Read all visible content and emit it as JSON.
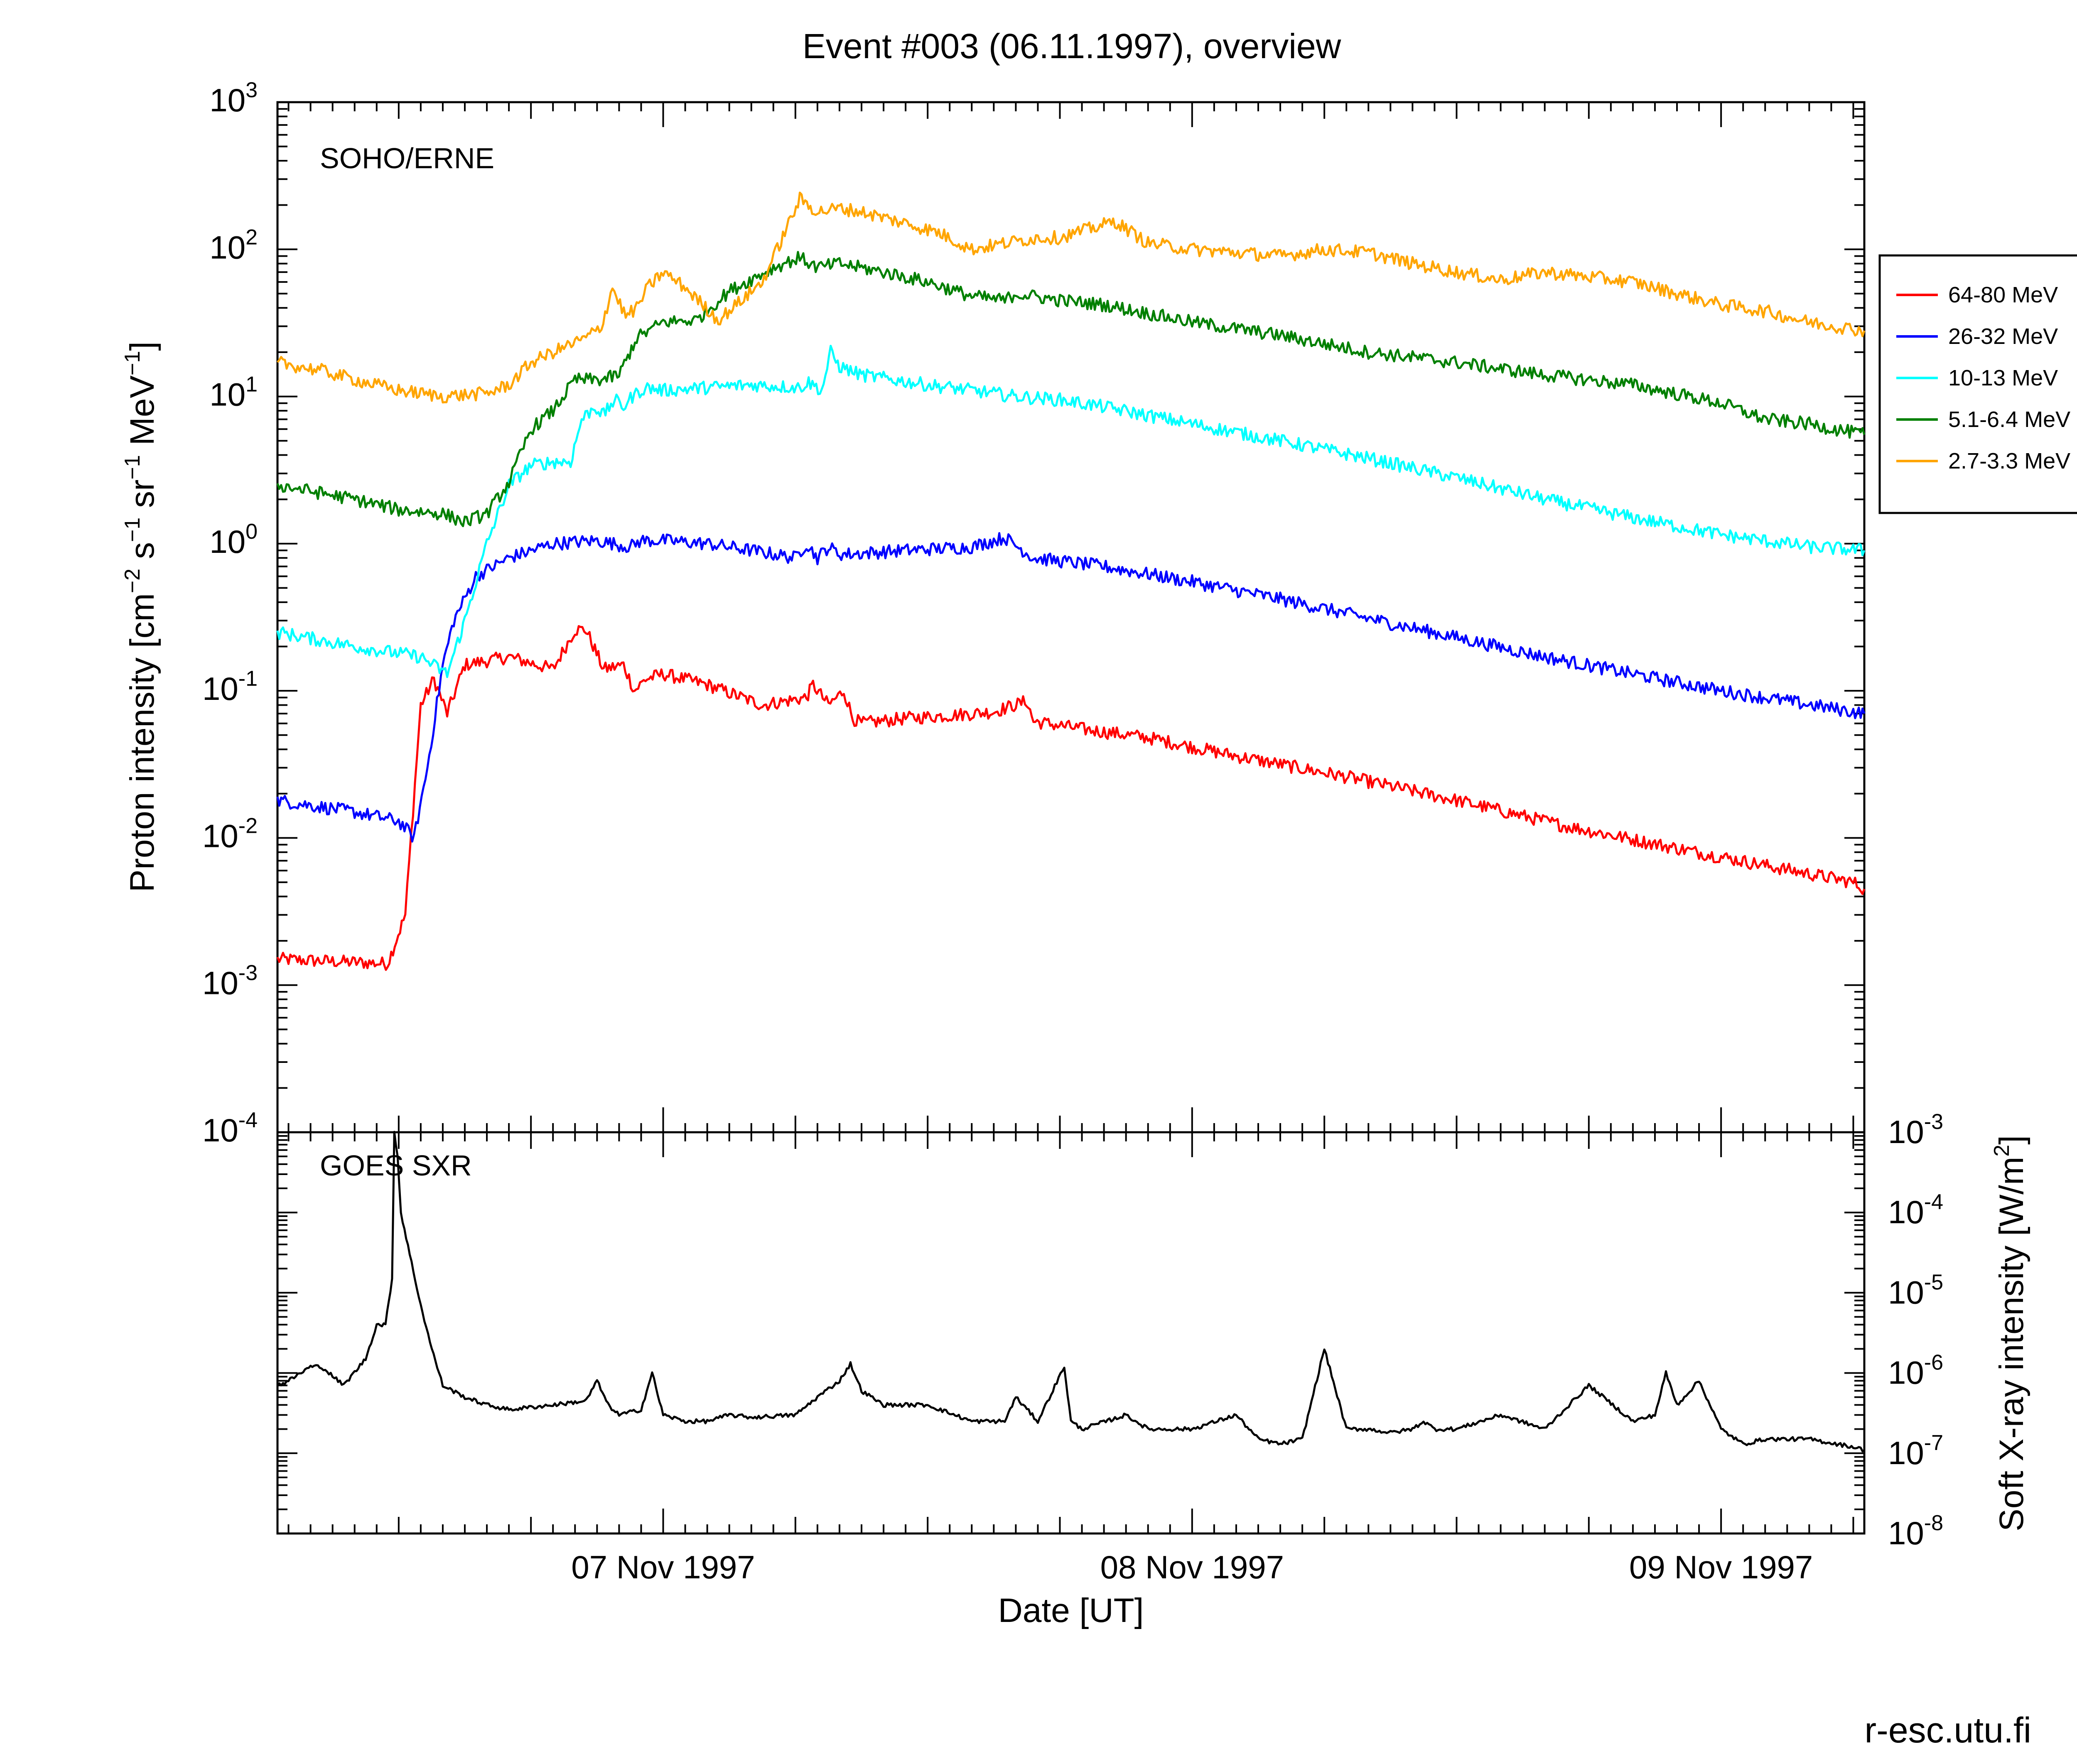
{
  "title": "Event #003 (06.11.1997), overview",
  "credit": "r-esc.utu.fi",
  "chart_data": [
    {
      "type": "line",
      "panel": "SOHO/ERNE",
      "ylabel": "Proton intensity [cm^-2 s^-1 sr^-1 MeV^-1]",
      "ylabel_parts": [
        "Proton intensity [cm",
        "−2",
        " s",
        "−1",
        " sr",
        "−1",
        " MeV",
        "−1",
        "]"
      ],
      "yscale": "log",
      "ylim": [
        0.0001,
        1000
      ],
      "ytick_labels": [
        {
          "base": "10",
          "exp": "-4",
          "value": 0.0001
        },
        {
          "base": "10",
          "exp": "-3",
          "value": 0.001
        },
        {
          "base": "10",
          "exp": "-2",
          "value": 0.01
        },
        {
          "base": "10",
          "exp": "-1",
          "value": 0.1
        },
        {
          "base": "10",
          "exp": "0",
          "value": 1
        },
        {
          "base": "10",
          "exp": "1",
          "value": 10
        },
        {
          "base": "10",
          "exp": "2",
          "value": 100
        },
        {
          "base": "10",
          "exp": "3",
          "value": 1000
        }
      ],
      "x_units": "hours since 1997-11-06 00:00 UT",
      "xlim": [
        6.5,
        78.5
      ],
      "legend_position": "right",
      "series": [
        {
          "name": "64-80 MeV",
          "color": "#ff0000",
          "x": [
            6.5,
            11.5,
            12.3,
            13,
            13.6,
            14.2,
            15,
            17,
            19,
            20,
            20.5,
            21.3,
            22.2,
            22.7,
            23.2,
            24,
            26,
            28.5,
            30.5,
            30.8,
            31.5,
            32.2,
            32.6,
            33,
            35,
            37,
            39,
            40.5,
            40.8,
            43,
            46,
            50,
            55,
            60,
            65,
            70,
            74,
            78,
            78.5
          ],
          "y": [
            0.0015,
            0.0014,
            0.003,
            0.08,
            0.12,
            0.07,
            0.15,
            0.17,
            0.14,
            0.26,
            0.26,
            0.14,
            0.15,
            0.1,
            0.12,
            0.13,
            0.11,
            0.08,
            0.09,
            0.11,
            0.08,
            0.1,
            0.065,
            0.06,
            0.065,
            0.068,
            0.072,
            0.085,
            0.062,
            0.055,
            0.048,
            0.036,
            0.026,
            0.018,
            0.012,
            0.0085,
            0.0065,
            0.005,
            0.0045
          ]
        },
        {
          "name": "26-32 MeV",
          "color": "#0000ff",
          "x": [
            6.5,
            10,
            12,
            12.7,
            13.3,
            14,
            14.5,
            15.5,
            17,
            19,
            21,
            22.5,
            23,
            24,
            26,
            28,
            30,
            30.5,
            31,
            31.5,
            32,
            32.5,
            35,
            38,
            39,
            39.5,
            40.8,
            44,
            48,
            52,
            56,
            60,
            64,
            68,
            72,
            75,
            78.5
          ],
          "y": [
            0.018,
            0.015,
            0.013,
            0.01,
            0.03,
            0.15,
            0.3,
            0.6,
            0.8,
            1.0,
            1.05,
            0.95,
            1.05,
            1.05,
            1.0,
            0.9,
            0.8,
            1.0,
            0.8,
            0.95,
            0.85,
            0.85,
            0.9,
            0.95,
            1.05,
            1.1,
            0.8,
            0.7,
            0.55,
            0.42,
            0.31,
            0.23,
            0.17,
            0.13,
            0.1,
            0.085,
            0.07
          ]
        },
        {
          "name": "10-13 MeV",
          "color": "#00ffff",
          "x": [
            6.5,
            10,
            13,
            14.2,
            15,
            16,
            17,
            18,
            19,
            19.8,
            20.3,
            20.9,
            21.3,
            21.8,
            22.2,
            22.6,
            23.2,
            24,
            26,
            28,
            30.2,
            30.6,
            31.2,
            31.6,
            32,
            33,
            36,
            38,
            40,
            42,
            44,
            48,
            52,
            56,
            60,
            64,
            68,
            72,
            76,
            78.5
          ],
          "y": [
            0.25,
            0.2,
            0.17,
            0.13,
            0.3,
            1.0,
            2.5,
            3.4,
            3.6,
            3.6,
            7.0,
            8.5,
            7.5,
            9.5,
            8.5,
            10,
            11.5,
            11,
            11.5,
            12,
            11.5,
            12.5,
            11,
            20,
            16,
            14,
            12,
            11,
            10,
            9.5,
            8.5,
            6.5,
            5.0,
            3.8,
            2.8,
            2.0,
            1.5,
            1.15,
            0.95,
            0.9
          ]
        },
        {
          "name": "5.1-6.4 MeV",
          "color": "#008000",
          "x": [
            6.5,
            10,
            12,
            14,
            15,
            16,
            17,
            18,
            19,
            20,
            21.2,
            22,
            22.8,
            24,
            25.5,
            27,
            29,
            30.2,
            31,
            32,
            34,
            36,
            38,
            39.5,
            40,
            42,
            44,
            48,
            52,
            56,
            60,
            64,
            68,
            72,
            74,
            76,
            78.5
          ],
          "y": [
            2.5,
            2.0,
            1.7,
            1.6,
            1.4,
            1.6,
            2.6,
            6.0,
            8.0,
            13,
            13,
            14,
            25,
            32,
            33,
            52,
            75,
            88,
            75,
            80,
            70,
            60,
            48,
            45,
            50,
            45,
            42,
            32,
            26,
            20,
            17,
            14,
            12,
            9,
            7,
            6.5,
            5.5
          ]
        },
        {
          "name": "2.7-3.3 MeV",
          "color": "#ffa500",
          "x": [
            6.5,
            8.5,
            10,
            12,
            14,
            16,
            17,
            18,
            19,
            20.5,
            21.2,
            21.7,
            22.3,
            22.8,
            23.3,
            24,
            25,
            26.5,
            28.5,
            30.2,
            31,
            32,
            33,
            35,
            36.5,
            38,
            39.5,
            41,
            42,
            43.5,
            44.5,
            46,
            48,
            50,
            52,
            54,
            56,
            58,
            60,
            62,
            64,
            66,
            68,
            70,
            72,
            74,
            76,
            78.5
          ],
          "y": [
            17,
            15,
            13,
            11,
            10,
            10.5,
            12,
            17,
            20,
            25,
            30,
            55,
            35,
            40,
            55,
            70,
            55,
            33,
            60,
            220,
            180,
            190,
            180,
            150,
            130,
            100,
            110,
            120,
            120,
            140,
            155,
            110,
            100,
            95,
            90,
            100,
            95,
            80,
            70,
            62,
            70,
            65,
            60,
            50,
            42,
            38,
            32,
            28
          ]
        }
      ]
    },
    {
      "type": "line",
      "panel": "GOES SXR",
      "ylabel": "Soft X-ray intensity [W/m^2]",
      "ylabel_parts": [
        "Soft X-ray intensity [W/m",
        "2",
        "]"
      ],
      "yscale": "log",
      "ylim": [
        1e-08,
        0.001
      ],
      "ytick_labels": [
        {
          "base": "10",
          "exp": "-3",
          "value": 0.001
        },
        {
          "base": "10",
          "exp": "-4",
          "value": 0.0001
        },
        {
          "base": "10",
          "exp": "-5",
          "value": 1e-05
        },
        {
          "base": "10",
          "exp": "-6",
          "value": 1e-06
        },
        {
          "base": "10",
          "exp": "-7",
          "value": 1e-07
        },
        {
          "base": "10",
          "exp": "-8",
          "value": 1e-08
        }
      ],
      "xlabel": "Date [UT]",
      "x_units": "hours since 1997-11-06 00:00 UT",
      "xlim": [
        6.5,
        78.5
      ],
      "xtick_labels": [
        {
          "label": "07 Nov 1997",
          "x": 24
        },
        {
          "label": "08 Nov 1997",
          "x": 48
        },
        {
          "label": "09 Nov 1997",
          "x": 72
        }
      ],
      "series": [
        {
          "name": "GOES SXR",
          "color": "#000000",
          "x": [
            6.5,
            7,
            8,
            8.5,
            9.5,
            10.5,
            11,
            11.4,
            11.7,
            11.8,
            11.95,
            12.1,
            12.5,
            13,
            13.5,
            14,
            15,
            16,
            17,
            19,
            20.5,
            21,
            21.5,
            22,
            23,
            23.5,
            24,
            25,
            26,
            27,
            28,
            30,
            31,
            32,
            32.5,
            33,
            34,
            35,
            36,
            38,
            39.5,
            40,
            41,
            42.2,
            42.5,
            43,
            45,
            46,
            48,
            50,
            51,
            52,
            53,
            54,
            55,
            56,
            57,
            58,
            58.5,
            59,
            60,
            62,
            64,
            66,
            68,
            69,
            69.5,
            70,
            71,
            71.5,
            72,
            73,
            74,
            76,
            78,
            78.5
          ],
          "y": [
            7e-07,
            8e-07,
            1.2e-06,
            1.2e-06,
            7e-07,
            1.5e-06,
            4e-06,
            4e-06,
            1.5e-05,
            0.001,
            0.0005,
            0.0001,
            3e-05,
            7e-06,
            2e-06,
            7e-07,
            5e-07,
            4e-07,
            3.5e-07,
            4e-07,
            4.5e-07,
            8e-07,
            4e-07,
            3e-07,
            3.5e-07,
            1e-06,
            3e-07,
            2.5e-07,
            2.5e-07,
            3e-07,
            2.8e-07,
            3e-07,
            5e-07,
            8e-07,
            1.3e-06,
            6e-07,
            4e-07,
            4e-07,
            4e-07,
            2.5e-07,
            2.5e-07,
            5e-07,
            2.5e-07,
            1.2e-06,
            2.5e-07,
            2e-07,
            3e-07,
            2e-07,
            2e-07,
            3e-07,
            1.5e-07,
            1.3e-07,
            1.5e-07,
            2e-06,
            2e-07,
            2e-07,
            1.8e-07,
            2e-07,
            2.5e-07,
            2e-07,
            2e-07,
            3e-07,
            2e-07,
            7e-07,
            2.5e-07,
            3e-07,
            1e-06,
            4e-07,
            8e-07,
            4e-07,
            2e-07,
            1.3e-07,
            1.5e-07,
            1.5e-07,
            1.2e-07,
            1.1e-07
          ]
        }
      ]
    }
  ]
}
